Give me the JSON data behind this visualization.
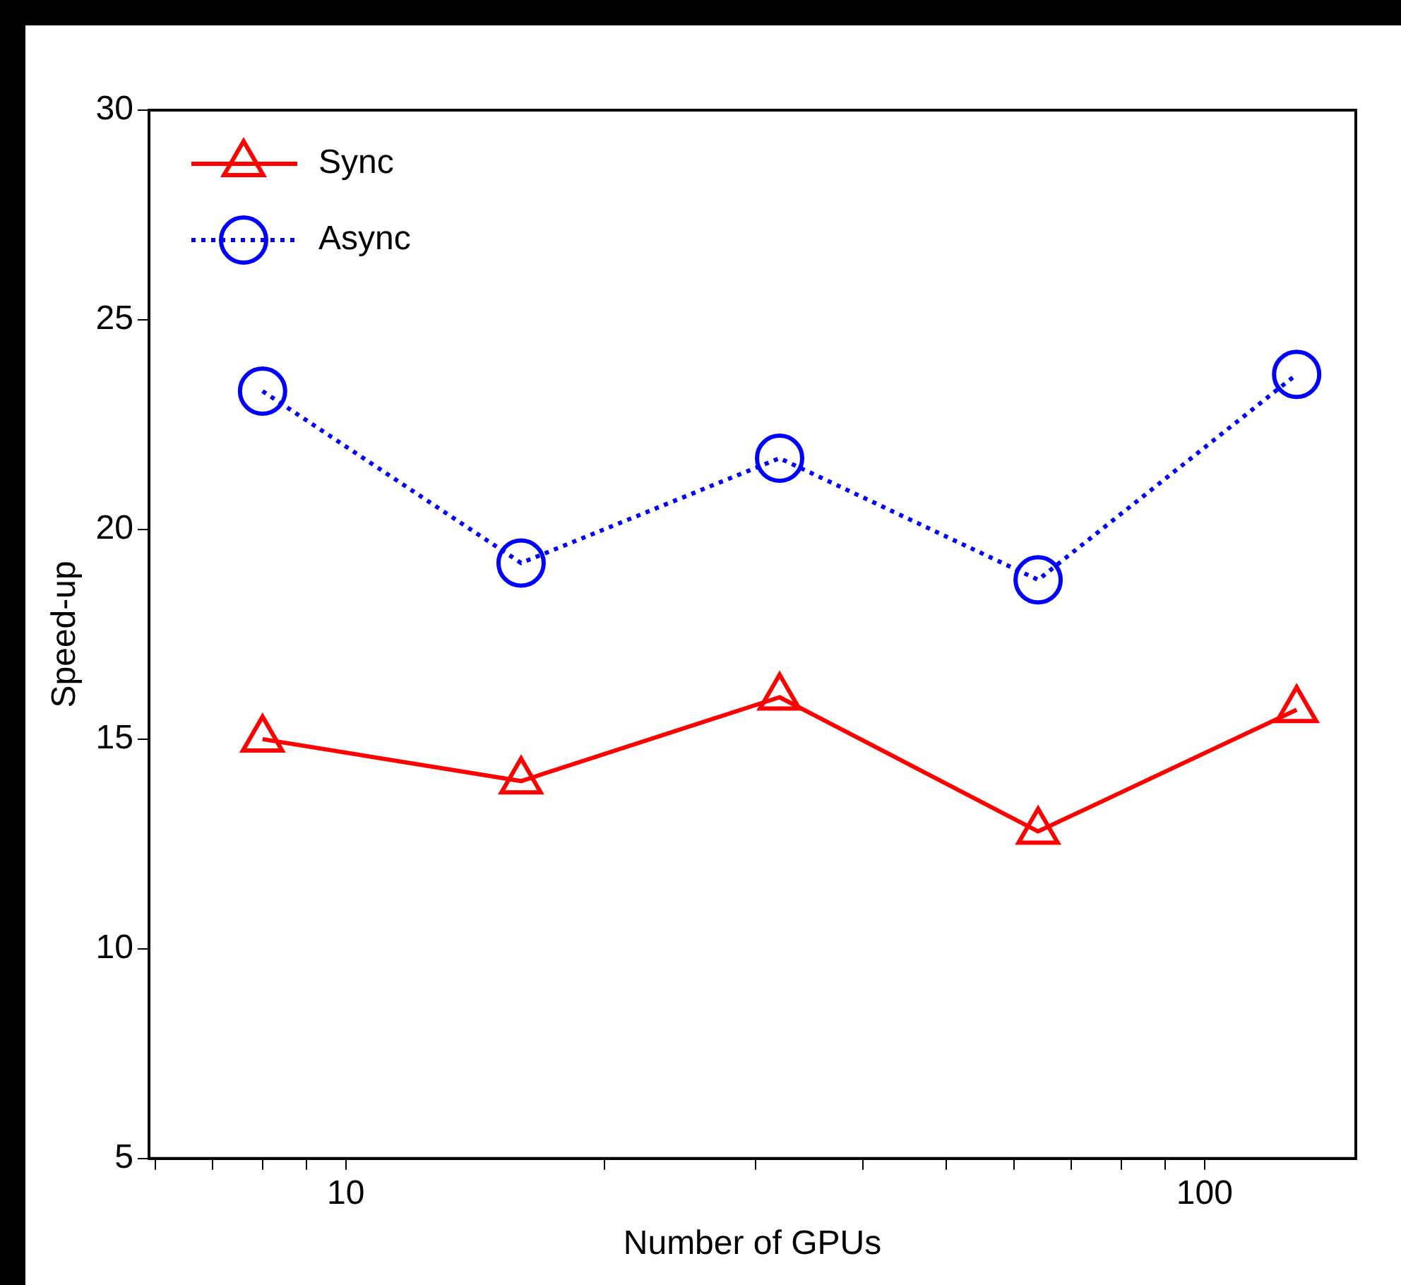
{
  "chart_data": {
    "type": "line",
    "xlabel": "Number of GPUs",
    "ylabel": "Speed-up",
    "log": "x",
    "x": [
      8,
      16,
      32,
      64,
      128
    ],
    "xlim": [
      5.9,
      150
    ],
    "xticks": [
      {
        "value": 6,
        "label": null
      },
      {
        "value": 7,
        "label": null
      },
      {
        "value": 8,
        "label": null
      },
      {
        "value": 9,
        "label": null
      },
      10,
      {
        "value": 20,
        "label": null
      },
      {
        "value": 30,
        "label": null
      },
      {
        "value": 40,
        "label": null
      },
      {
        "value": 50,
        "label": null
      },
      {
        "value": 60,
        "label": null
      },
      {
        "value": 70,
        "label": null
      },
      {
        "value": 80,
        "label": null
      },
      {
        "value": 90,
        "label": null
      },
      100
    ],
    "ylim": [
      5,
      30
    ],
    "yticks": [
      5,
      10,
      15,
      20,
      25,
      30
    ],
    "legend": "top left",
    "grid": false,
    "series": [
      {
        "name": "Sync",
        "color": "#ff0000",
        "values": [
          15.0,
          14.0,
          16.0,
          12.8,
          15.7
        ],
        "marker": "triangle",
        "line_style": "solid"
      },
      {
        "name": "Async",
        "color": "#0000ff",
        "values": [
          23.3,
          19.2,
          21.7,
          18.8,
          23.7
        ],
        "marker": "circle",
        "line_style": "dotted"
      }
    ]
  }
}
